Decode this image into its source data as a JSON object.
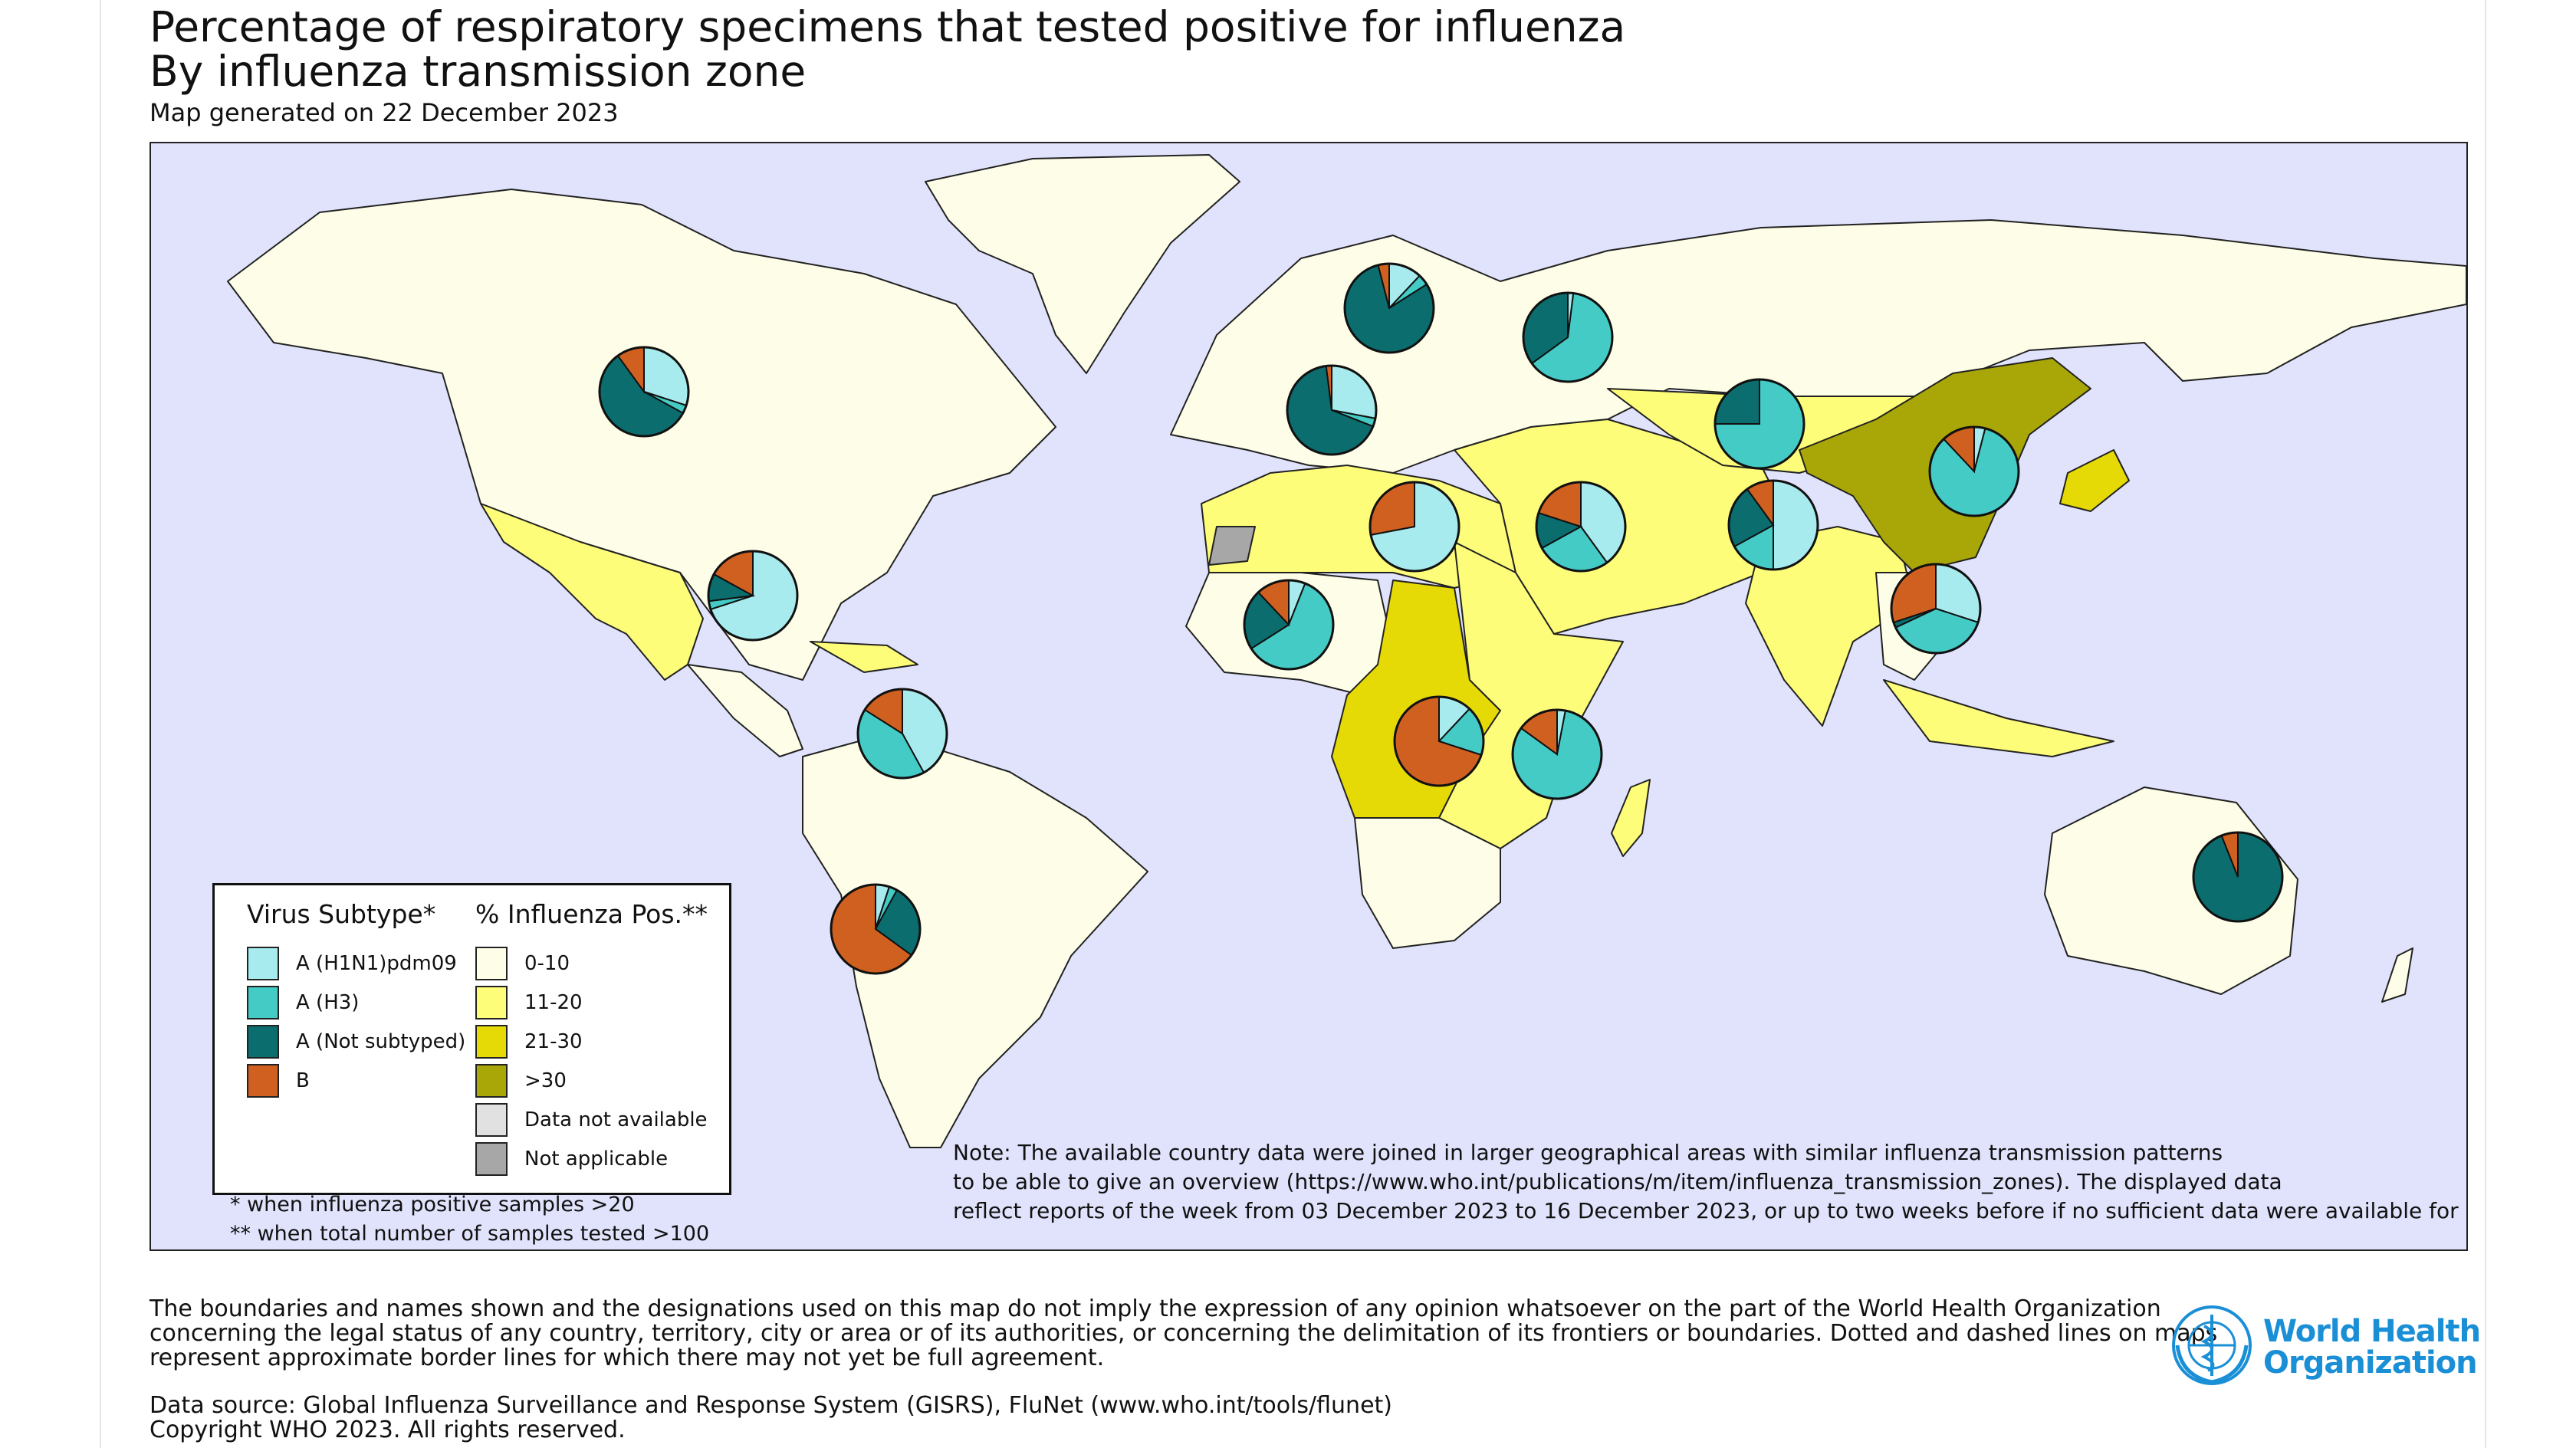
{
  "header": {
    "title_line1": "Percentage of respiratory specimens that tested positive for influenza",
    "title_line2": "By influenza transmission zone",
    "generated": "Map generated on 22 December 2023"
  },
  "colors": {
    "ocean": "#e0e3fb",
    "h1n1": "#a8ebee",
    "h3": "#45cbc6",
    "a_not_subtyped": "#0b6d6e",
    "b": "#d06020",
    "pos_0_10": "#fefee8",
    "pos_11_20": "#fefd7a",
    "pos_21_30": "#e6da06",
    "pos_over_30": "#a9a707",
    "data_not_available": "#e1e1e1",
    "not_applicable": "#a7a7a7"
  },
  "legend": {
    "virus_heading": "Virus Subtype*",
    "pos_heading": "% Influenza Pos.**",
    "virus_items": [
      {
        "label": "A (H1N1)pdm09",
        "color": "#a8ebee"
      },
      {
        "label": "A (H3)",
        "color": "#45cbc6"
      },
      {
        "label": "A (Not subtyped)",
        "color": "#0b6d6e"
      },
      {
        "label": "B",
        "color": "#d06020"
      }
    ],
    "pos_items": [
      {
        "label": "0-10",
        "color": "#fefee8"
      },
      {
        "label": "11-20",
        "color": "#fefd7a"
      },
      {
        "label": "21-30",
        "color": "#e6da06"
      },
      {
        "label": ">30",
        "color": "#a9a707"
      },
      {
        "label": "Data not available",
        "color": "#e1e1e1"
      },
      {
        "label": "Not applicable",
        "color": "#a7a7a7"
      }
    ],
    "footnote1": "* when influenza positive samples >20",
    "footnote2": "** when total number of samples tested >100"
  },
  "note": {
    "line1": "Note: The available country data were joined in larger geographical areas with similar influenza transmission patterns",
    "line2": "to be able to give an overview (https://www.who.int/publications/m/item/influenza_transmission_zones). The displayed data",
    "line3": "reflect reports of the week from 03 December 2023 to 16 December 2023, or up to two weeks before if no sufficient data were available for that ar"
  },
  "disclaimer": {
    "line1": "The boundaries and names shown and the designations used on this map do not imply the expression of any opinion whatsoever on the part of the World Health Organization",
    "line2": "concerning the legal status of any country, territory, city or area or of its authorities, or concerning the delimitation of its frontiers or boundaries. Dotted and dashed lines on maps",
    "line3": "represent approximate border lines for which there may not yet be full agreement.",
    "source": "Data source: Global Influenza Surveillance and Response System (GISRS), FluNet (www.who.int/tools/flunet)",
    "copyright": "Copyright WHO 2023. All rights reserved."
  },
  "logo": {
    "line1": "World Health",
    "line2": "Organization"
  },
  "zone_pies": [
    {
      "zone": "North America",
      "h1n1": 30,
      "h3": 3,
      "a_not_subtyped": 57,
      "b": 10
    },
    {
      "zone": "Central America and Caribbean",
      "h1n1": 70,
      "h3": 3,
      "a_not_subtyped": 10,
      "b": 17
    },
    {
      "zone": "Tropical South America",
      "h1n1": 42,
      "h3": 42,
      "a_not_subtyped": 0,
      "b": 16
    },
    {
      "zone": "Temperate South America",
      "h1n1": 5,
      "h3": 3,
      "a_not_subtyped": 27,
      "b": 65
    },
    {
      "zone": "Northern Europe",
      "h1n1": 12,
      "h3": 4,
      "a_not_subtyped": 80,
      "b": 4
    },
    {
      "zone": "South West Europe",
      "h1n1": 28,
      "h3": 3,
      "a_not_subtyped": 67,
      "b": 2
    },
    {
      "zone": "Eastern Europe",
      "h1n1": 2,
      "h3": 63,
      "a_not_subtyped": 35,
      "b": 0
    },
    {
      "zone": "Northern Africa",
      "h1n1": 72,
      "h3": 0,
      "a_not_subtyped": 0,
      "b": 28
    },
    {
      "zone": "Western Asia",
      "h1n1": 40,
      "h3": 27,
      "a_not_subtyped": 13,
      "b": 20
    },
    {
      "zone": "Central Asia",
      "h1n1": 0,
      "h3": 75,
      "a_not_subtyped": 25,
      "b": 0
    },
    {
      "zone": "Southern Asia",
      "h1n1": 50,
      "h3": 17,
      "a_not_subtyped": 23,
      "b": 10
    },
    {
      "zone": "Eastern Asia",
      "h1n1": 4,
      "h3": 84,
      "a_not_subtyped": 0,
      "b": 12
    },
    {
      "zone": "South East Asia",
      "h1n1": 30,
      "h3": 38,
      "a_not_subtyped": 2,
      "b": 30
    },
    {
      "zone": "Western Africa",
      "h1n1": 6,
      "h3": 60,
      "a_not_subtyped": 22,
      "b": 12
    },
    {
      "zone": "Middle Africa",
      "h1n1": 12,
      "h3": 18,
      "a_not_subtyped": 0,
      "b": 70
    },
    {
      "zone": "Eastern Africa",
      "h1n1": 3,
      "h3": 82,
      "a_not_subtyped": 0,
      "b": 15
    },
    {
      "zone": "Oceania Melanesia Polynesia",
      "h1n1": 0,
      "h3": 0,
      "a_not_subtyped": 94,
      "b": 6
    }
  ]
}
